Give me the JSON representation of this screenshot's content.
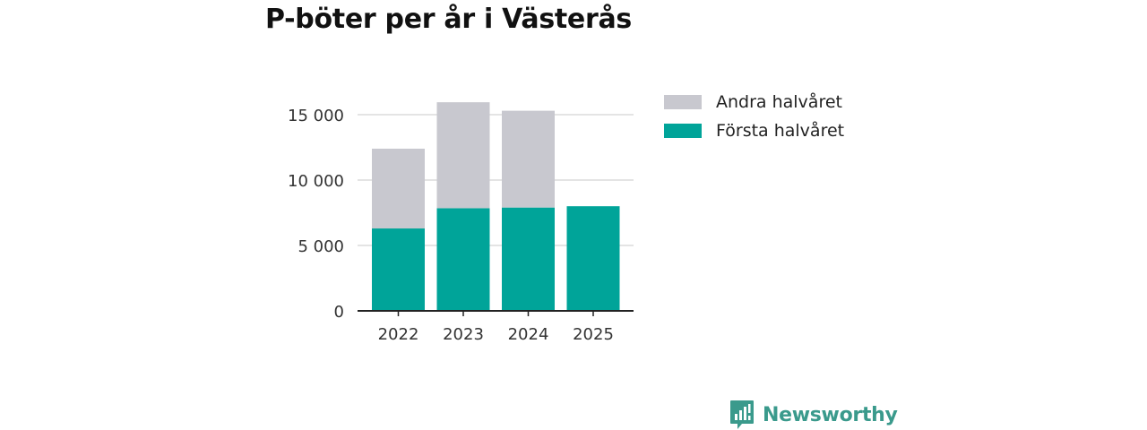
{
  "chart_data": {
    "type": "bar",
    "stacked": true,
    "title": "P-böter per år i Västerås",
    "categories": [
      "2022",
      "2023",
      "2024",
      "2025"
    ],
    "series": [
      {
        "name": "Första halvåret",
        "color": "#00a499",
        "values": [
          6300,
          7850,
          7900,
          8000
        ]
      },
      {
        "name": "Andra halvåret",
        "color": "#c8c8cf",
        "values": [
          6100,
          8100,
          7400,
          0
        ]
      }
    ],
    "y_ticks": [
      0,
      5000,
      10000,
      15000
    ],
    "y_tick_labels": [
      "0",
      "5 000",
      "10 000",
      "15 000"
    ],
    "ylim": [
      0,
      16500
    ],
    "xlabel": "",
    "ylabel": "",
    "legend": [
      {
        "label": "Andra halvåret",
        "color": "#c8c8cf"
      },
      {
        "label": "Första halvåret",
        "color": "#00a499"
      }
    ],
    "legend_position": "right",
    "grid": true
  },
  "branding": {
    "name": "Newsworthy",
    "color": "#3a9a8c"
  }
}
